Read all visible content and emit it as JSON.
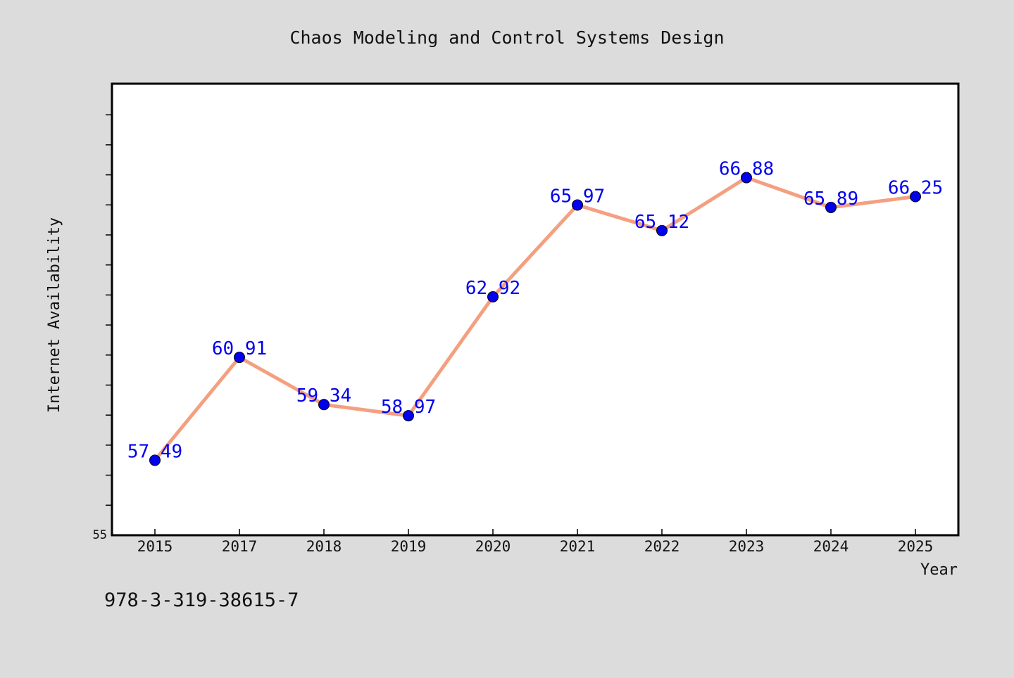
{
  "chart_data": {
    "type": "line",
    "title": "Chaos Modeling and Control Systems Design",
    "xlabel": "Year",
    "ylabel": "Internet Availability",
    "categories": [
      "2015",
      "2017",
      "2018",
      "2019",
      "2020",
      "2021",
      "2022",
      "2023",
      "2024",
      "2025"
    ],
    "series": [
      {
        "values": [
          57.49,
          60.91,
          59.34,
          58.97,
          62.92,
          65.97,
          65.12,
          66.88,
          65.89,
          66.25
        ]
      }
    ],
    "data_labels": [
      "57.49",
      "60.91",
      "59.34",
      "58.97",
      "62.92",
      "65.97",
      "65.12",
      "66.88",
      "65.89",
      "66.25"
    ],
    "ylim": [
      55,
      70
    ],
    "ytick_labels": [
      "55"
    ],
    "grid": false,
    "line_color": "#f4a080",
    "marker_color": "#0000ee",
    "label_color": "#0000ee",
    "background_color": "#dcdcdc",
    "plot_background": "#ffffff"
  },
  "footer": {
    "isbn": "978-3-319-38615-7"
  }
}
